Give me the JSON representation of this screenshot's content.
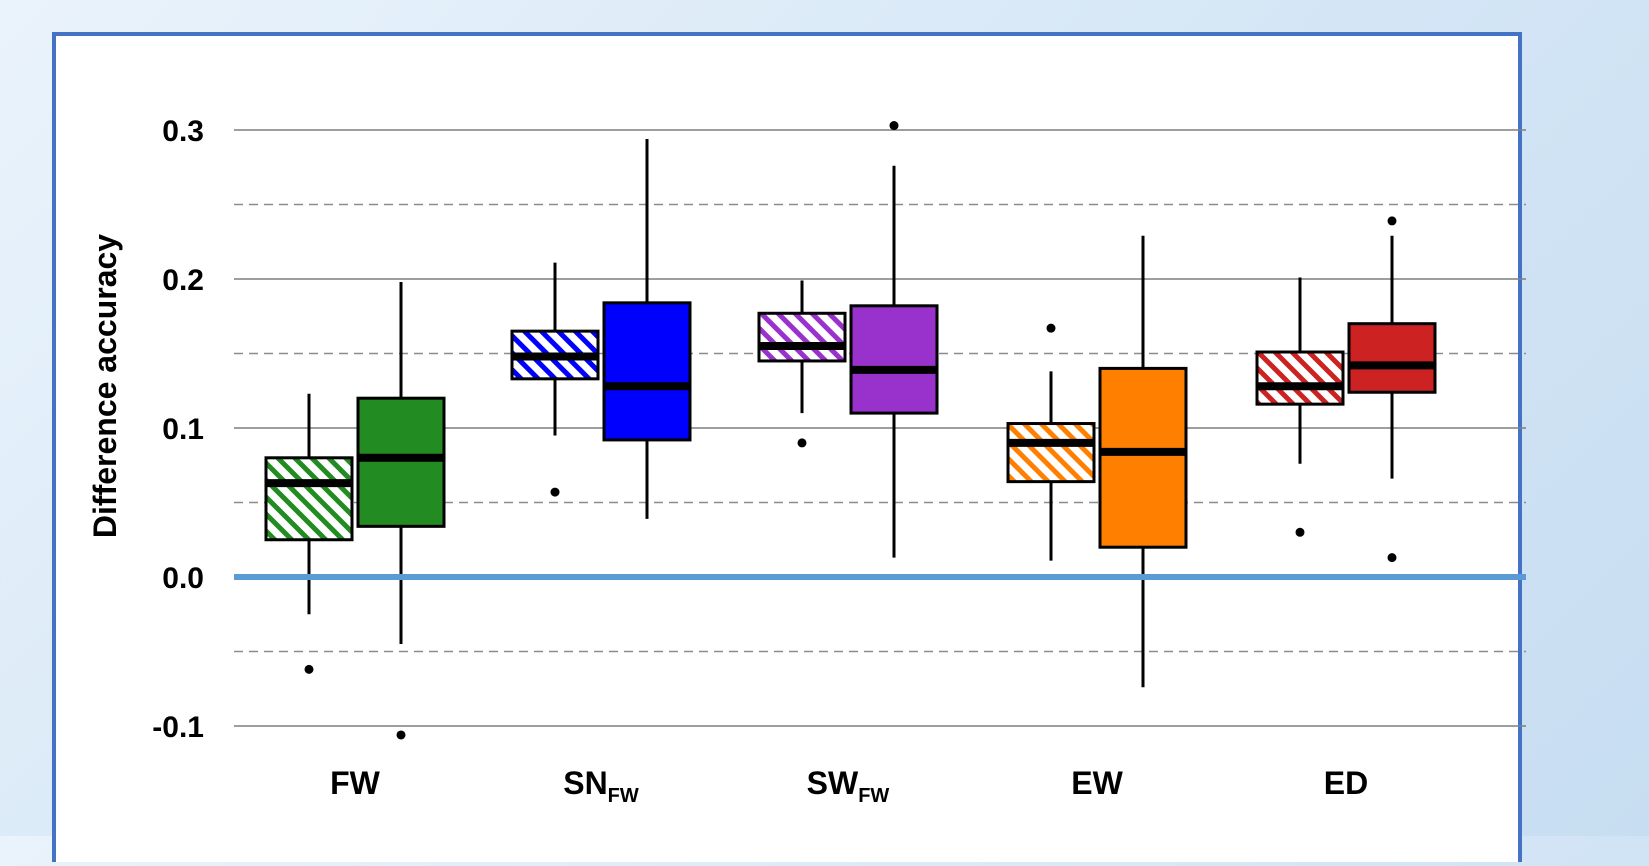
{
  "chart_data": {
    "type": "box",
    "title": "",
    "ylabel": "Difference accuracy",
    "xlabel": "",
    "ylim": [
      -0.118,
      0.322
    ],
    "yticks": [
      -0.1,
      0.0,
      0.1,
      0.2,
      0.3
    ],
    "ytick_labels": [
      "-0.1",
      "0.0",
      "0.1",
      "0.2",
      "0.3"
    ],
    "minor_gridlines": [
      -0.05,
      0.05,
      0.15,
      0.25
    ],
    "reference_line": 0.0,
    "colors": {
      "FW": "#228b22",
      "SN_FW": "#0000ff",
      "SW_FW": "#9932cc",
      "EW": "#ff8000",
      "ED": "#cc2222",
      "reference_line": "#5b9bd5",
      "frame": "#4472c4"
    },
    "categories": [
      {
        "key": "FW",
        "label": "FW",
        "subscript": "",
        "boxes": [
          {
            "variant": "hatched",
            "whisker_low": -0.025,
            "q1": 0.025,
            "median": 0.063,
            "q3": 0.08,
            "whisker_high": 0.123,
            "outliers": [
              -0.062
            ]
          },
          {
            "variant": "solid",
            "whisker_low": -0.045,
            "q1": 0.034,
            "median": 0.08,
            "q3": 0.12,
            "whisker_high": 0.198,
            "outliers": [
              -0.106
            ]
          }
        ]
      },
      {
        "key": "SN_FW",
        "label": "SN",
        "subscript": "FW",
        "boxes": [
          {
            "variant": "hatched",
            "whisker_low": 0.095,
            "q1": 0.133,
            "median": 0.148,
            "q3": 0.165,
            "whisker_high": 0.211,
            "outliers": [
              0.057
            ]
          },
          {
            "variant": "solid",
            "whisker_low": 0.039,
            "q1": 0.092,
            "median": 0.128,
            "q3": 0.184,
            "whisker_high": 0.294,
            "outliers": []
          }
        ]
      },
      {
        "key": "SW_FW",
        "label": "SW",
        "subscript": "FW",
        "boxes": [
          {
            "variant": "hatched",
            "whisker_low": 0.11,
            "q1": 0.145,
            "median": 0.155,
            "q3": 0.177,
            "whisker_high": 0.199,
            "outliers": [
              0.09
            ]
          },
          {
            "variant": "solid",
            "whisker_low": 0.013,
            "q1": 0.11,
            "median": 0.139,
            "q3": 0.182,
            "whisker_high": 0.276,
            "outliers": [
              0.303
            ]
          }
        ]
      },
      {
        "key": "EW",
        "label": "EW",
        "subscript": "",
        "boxes": [
          {
            "variant": "hatched",
            "whisker_low": 0.011,
            "q1": 0.064,
            "median": 0.09,
            "q3": 0.103,
            "whisker_high": 0.138,
            "outliers": [
              0.167
            ]
          },
          {
            "variant": "solid",
            "whisker_low": -0.074,
            "q1": 0.02,
            "median": 0.084,
            "q3": 0.14,
            "whisker_high": 0.229,
            "outliers": []
          }
        ]
      },
      {
        "key": "ED",
        "label": "ED",
        "subscript": "",
        "boxes": [
          {
            "variant": "hatched",
            "whisker_low": 0.076,
            "q1": 0.116,
            "median": 0.128,
            "q3": 0.151,
            "whisker_high": 0.201,
            "outliers": [
              0.03
            ]
          },
          {
            "variant": "solid",
            "whisker_low": 0.066,
            "q1": 0.124,
            "median": 0.142,
            "q3": 0.17,
            "whisker_high": 0.229,
            "outliers": [
              0.013,
              0.239
            ]
          }
        ]
      }
    ]
  }
}
